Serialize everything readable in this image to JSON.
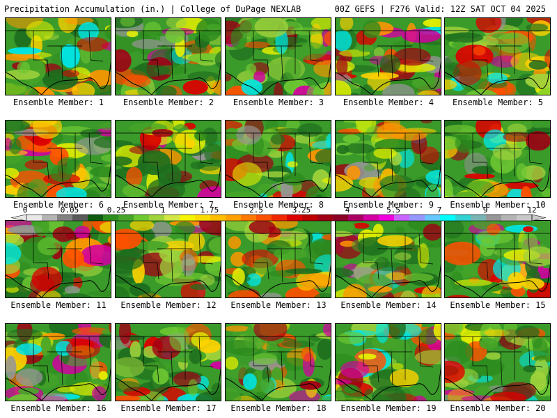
{
  "header": {
    "left_title": "Precipitation Accumulation (in.) | College of DuPage NEXLAB",
    "right_title": "00Z GEFS | F276 Valid: 12Z SAT OCT 04 2025"
  },
  "colorbar": {
    "labels": [
      "0",
      "0.05",
      "0.25",
      "1",
      "1.75",
      "2.5",
      "3.25",
      "4",
      "5.5",
      "7",
      "9",
      "12"
    ],
    "colors": [
      "#e8e8e8",
      "#b4b4b4",
      "#828282",
      "#5a5a5a",
      "#0f5a0f",
      "#2d8c1e",
      "#46a528",
      "#6ec832",
      "#a0d23c",
      "#d2e646",
      "#f5f500",
      "#ffdc00",
      "#ffbe00",
      "#ffa000",
      "#ff7800",
      "#ff5000",
      "#f02800",
      "#dc0000",
      "#be0000",
      "#a00014",
      "#8c0028",
      "#aa0064",
      "#d200a0",
      "#f000dc",
      "#c864ff",
      "#9696ff",
      "#64c8ff",
      "#00ffff",
      "#32d2d2",
      "#78b4b4",
      "#969696",
      "#b4b4b4",
      "#c8c8c8"
    ]
  },
  "panels": [
    {
      "label": "Ensemble Member: 1"
    },
    {
      "label": "Ensemble Member: 2"
    },
    {
      "label": "Ensemble Member: 3"
    },
    {
      "label": "Ensemble Member: 4"
    },
    {
      "label": "Ensemble Member: 5"
    },
    {
      "label": "Ensemble Member: 6"
    },
    {
      "label": "Ensemble Member: 7"
    },
    {
      "label": "Ensemble Member: 8"
    },
    {
      "label": "Ensemble Member: 9"
    },
    {
      "label": "Ensemble Member: 10"
    },
    {
      "label": "Ensemble Member: 11"
    },
    {
      "label": "Ensemble Member: 12"
    },
    {
      "label": "Ensemble Member: 13"
    },
    {
      "label": "Ensemble Member: 14"
    },
    {
      "label": "Ensemble Member: 15"
    },
    {
      "label": "Ensemble Member: 16"
    },
    {
      "label": "Ensemble Member: 17"
    },
    {
      "label": "Ensemble Member: 18"
    },
    {
      "label": "Ensemble Member: 19"
    },
    {
      "label": "Ensemble Member: 20"
    }
  ]
}
